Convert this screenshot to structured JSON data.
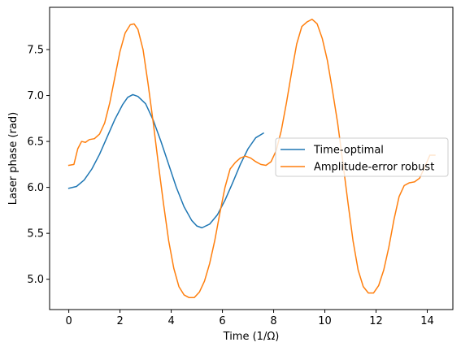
{
  "chart_data": {
    "type": "line",
    "title": "",
    "xlabel": "Time (1/Ω)",
    "ylabel": "Laser phase (rad)",
    "xlim": [
      -0.75,
      15.0
    ],
    "ylim": [
      4.67,
      7.96
    ],
    "xticks": [
      0,
      2,
      4,
      6,
      8,
      10,
      12,
      14
    ],
    "yticks": [
      5.0,
      5.5,
      6.0,
      6.5,
      7.0,
      7.5
    ],
    "ytick_labels": [
      "5.0",
      "5.5",
      "6.0",
      "6.5",
      "7.0",
      "7.5"
    ],
    "grid": false,
    "legend_position": "center-right",
    "series": [
      {
        "name": "Time-optimal",
        "color": "#1f77b4",
        "points": [
          [
            0.0,
            5.99
          ],
          [
            0.3,
            6.01
          ],
          [
            0.6,
            6.08
          ],
          [
            0.9,
            6.2
          ],
          [
            1.2,
            6.36
          ],
          [
            1.5,
            6.55
          ],
          [
            1.8,
            6.74
          ],
          [
            2.1,
            6.9
          ],
          [
            2.3,
            6.98
          ],
          [
            2.5,
            7.01
          ],
          [
            2.7,
            6.99
          ],
          [
            3.0,
            6.91
          ],
          [
            3.3,
            6.73
          ],
          [
            3.6,
            6.5
          ],
          [
            3.9,
            6.25
          ],
          [
            4.2,
            6.0
          ],
          [
            4.5,
            5.79
          ],
          [
            4.8,
            5.64
          ],
          [
            5.0,
            5.58
          ],
          [
            5.2,
            5.56
          ],
          [
            5.5,
            5.6
          ],
          [
            5.8,
            5.7
          ],
          [
            6.1,
            5.86
          ],
          [
            6.4,
            6.05
          ],
          [
            6.7,
            6.25
          ],
          [
            7.0,
            6.42
          ],
          [
            7.3,
            6.54
          ],
          [
            7.6,
            6.59
          ]
        ]
      },
      {
        "name": "Amplitude-error robust",
        "color": "#ff7f0e",
        "points": [
          [
            0.0,
            6.24
          ],
          [
            0.2,
            6.25
          ],
          [
            0.35,
            6.42
          ],
          [
            0.5,
            6.5
          ],
          [
            0.65,
            6.49
          ],
          [
            0.8,
            6.52
          ],
          [
            1.0,
            6.53
          ],
          [
            1.2,
            6.58
          ],
          [
            1.4,
            6.7
          ],
          [
            1.6,
            6.92
          ],
          [
            1.8,
            7.2
          ],
          [
            2.0,
            7.48
          ],
          [
            2.2,
            7.68
          ],
          [
            2.4,
            7.77
          ],
          [
            2.55,
            7.78
          ],
          [
            2.7,
            7.72
          ],
          [
            2.9,
            7.5
          ],
          [
            3.1,
            7.12
          ],
          [
            3.3,
            6.7
          ],
          [
            3.5,
            6.25
          ],
          [
            3.7,
            5.82
          ],
          [
            3.9,
            5.42
          ],
          [
            4.1,
            5.12
          ],
          [
            4.3,
            4.92
          ],
          [
            4.5,
            4.83
          ],
          [
            4.7,
            4.8
          ],
          [
            4.9,
            4.8
          ],
          [
            5.1,
            4.86
          ],
          [
            5.3,
            4.98
          ],
          [
            5.5,
            5.17
          ],
          [
            5.7,
            5.42
          ],
          [
            5.9,
            5.72
          ],
          [
            6.1,
            6.0
          ],
          [
            6.3,
            6.2
          ],
          [
            6.5,
            6.27
          ],
          [
            6.7,
            6.32
          ],
          [
            6.9,
            6.34
          ],
          [
            7.1,
            6.32
          ],
          [
            7.3,
            6.28
          ],
          [
            7.5,
            6.25
          ],
          [
            7.7,
            6.24
          ],
          [
            7.9,
            6.28
          ],
          [
            8.1,
            6.4
          ],
          [
            8.3,
            6.62
          ],
          [
            8.5,
            6.92
          ],
          [
            8.7,
            7.25
          ],
          [
            8.9,
            7.56
          ],
          [
            9.1,
            7.75
          ],
          [
            9.3,
            7.8
          ],
          [
            9.5,
            7.83
          ],
          [
            9.7,
            7.78
          ],
          [
            9.9,
            7.62
          ],
          [
            10.1,
            7.38
          ],
          [
            10.3,
            7.05
          ],
          [
            10.5,
            6.7
          ],
          [
            10.7,
            6.28
          ],
          [
            10.9,
            5.84
          ],
          [
            11.1,
            5.42
          ],
          [
            11.3,
            5.1
          ],
          [
            11.5,
            4.92
          ],
          [
            11.7,
            4.85
          ],
          [
            11.9,
            4.85
          ],
          [
            12.1,
            4.93
          ],
          [
            12.3,
            5.1
          ],
          [
            12.5,
            5.35
          ],
          [
            12.7,
            5.65
          ],
          [
            12.9,
            5.9
          ],
          [
            13.1,
            6.02
          ],
          [
            13.3,
            6.05
          ],
          [
            13.5,
            6.06
          ],
          [
            13.7,
            6.1
          ],
          [
            13.9,
            6.22
          ],
          [
            14.1,
            6.35
          ],
          [
            14.3,
            6.35
          ]
        ]
      }
    ]
  }
}
